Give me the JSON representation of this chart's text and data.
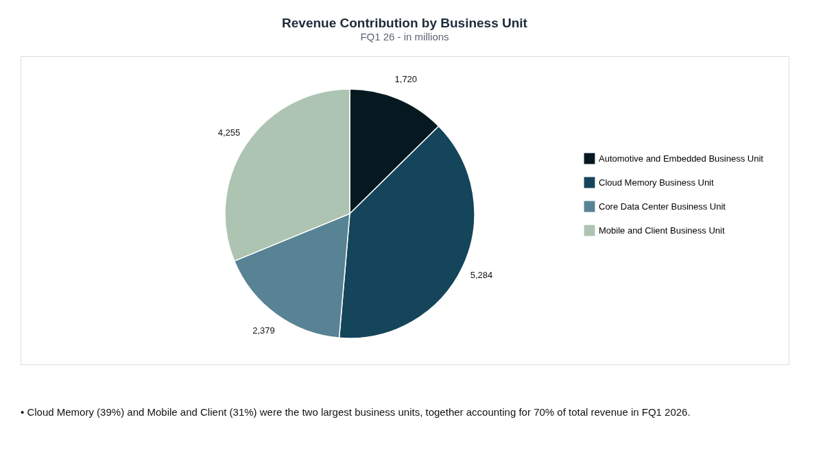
{
  "chart_data": {
    "type": "pie",
    "title": "Revenue Contribution by Business Unit",
    "subtitle": "FQ1 26 - in millions",
    "categories": [
      "Automotive and Embedded Business Unit",
      "Cloud Memory Business Unit",
      "Core Data Center Business Unit",
      "Mobile and Client Business Unit"
    ],
    "values": [
      1720,
      5284,
      2379,
      4255
    ],
    "colors": [
      "#061820",
      "#14455a",
      "#588394",
      "#aec4b2"
    ],
    "value_labels": [
      "1,720",
      "5,284",
      "2,379",
      "4,255"
    ],
    "legend": "right",
    "annotations": [
      "• Cloud Memory (39%) and Mobile and Client (31%) were the two largest business units, together accounting for 70% of total revenue in FQ1 2026."
    ]
  }
}
